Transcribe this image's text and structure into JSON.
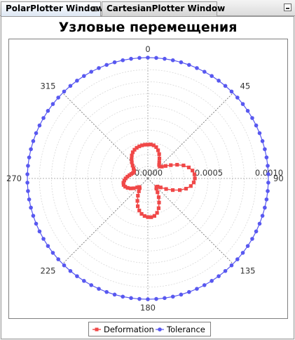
{
  "tabs": [
    {
      "label": "PolarPlotter Window",
      "active": true
    },
    {
      "label": "CartesianPlotter Window",
      "active": false
    }
  ],
  "tab_close_icon": "close-icon",
  "minimize_icon": "minimize-icon",
  "chart_data": {
    "type": "polar",
    "title": "Узловые перемещения",
    "angle_ticks": [
      "0",
      "45",
      "90",
      "135",
      "180",
      "225",
      "270",
      "315"
    ],
    "radial_ticks": [
      "0.0000",
      "0.0005",
      "0.0010"
    ],
    "rmax": 0.001,
    "grid": true,
    "legend_position": "bottom",
    "colors": {
      "deformation": "#f04848",
      "tolerance": "#5858f0"
    },
    "series": [
      {
        "name": "Deformation",
        "marker": "square",
        "points": [
          [
            0,
            0.00028
          ],
          [
            5,
            0.000282
          ],
          [
            10,
            0.000278
          ],
          [
            15,
            0.000268
          ],
          [
            20,
            0.000248
          ],
          [
            25,
            0.000222
          ],
          [
            30,
            0.000192
          ],
          [
            35,
            0.000165
          ],
          [
            40,
            0.000145
          ],
          [
            45,
            0.00014
          ],
          [
            50,
            0.000152
          ],
          [
            55,
            0.00018
          ],
          [
            60,
            0.00022
          ],
          [
            65,
            0.000268
          ],
          [
            70,
            0.000315
          ],
          [
            75,
            0.000352
          ],
          [
            80,
            0.000376
          ],
          [
            85,
            0.000388
          ],
          [
            90,
            0.00039
          ],
          [
            95,
            0.000382
          ],
          [
            100,
            0.000362
          ],
          [
            105,
            0.000328
          ],
          [
            110,
            0.000282
          ],
          [
            115,
            0.000228
          ],
          [
            120,
            0.000175
          ],
          [
            125,
            0.00013
          ],
          [
            130,
            0.000105
          ],
          [
            135,
            0.0001
          ],
          [
            140,
            0.00011
          ],
          [
            145,
            0.00014
          ],
          [
            150,
            0.00018
          ],
          [
            155,
            0.00022
          ],
          [
            160,
            0.000262
          ],
          [
            165,
            0.000295
          ],
          [
            170,
            0.000315
          ],
          [
            175,
            0.000322
          ],
          [
            180,
            0.00032
          ],
          [
            185,
            0.000312
          ],
          [
            190,
            0.000298
          ],
          [
            195,
            0.000275
          ],
          [
            200,
            0.000245
          ],
          [
            205,
            0.000205
          ],
          [
            210,
            0.000165
          ],
          [
            215,
            0.00013
          ],
          [
            220,
            0.000105
          ],
          [
            225,
            0.0001
          ],
          [
            230,
            0.000115
          ],
          [
            235,
            0.000142
          ],
          [
            240,
            0.000165
          ],
          [
            245,
            0.000185
          ],
          [
            250,
            0.0002
          ],
          [
            255,
            0.000208
          ],
          [
            260,
            0.000206
          ],
          [
            265,
            0.000196
          ],
          [
            270,
            0.000184
          ],
          [
            275,
            0.00017
          ],
          [
            280,
            0.000155
          ],
          [
            285,
            0.000142
          ],
          [
            290,
            0.000132
          ],
          [
            295,
            0.000128
          ],
          [
            300,
            0.000132
          ],
          [
            305,
            0.000145
          ],
          [
            310,
            0.000165
          ],
          [
            315,
            0.000188
          ],
          [
            320,
            0.00021
          ],
          [
            325,
            0.000232
          ],
          [
            330,
            0.00025
          ],
          [
            335,
            0.000262
          ],
          [
            340,
            0.00027
          ],
          [
            345,
            0.000275
          ],
          [
            350,
            0.000278
          ],
          [
            355,
            0.00028
          ]
        ]
      },
      {
        "name": "Tolerance",
        "marker": "circle",
        "constant_r": 0.001,
        "step_deg": 4
      }
    ]
  }
}
